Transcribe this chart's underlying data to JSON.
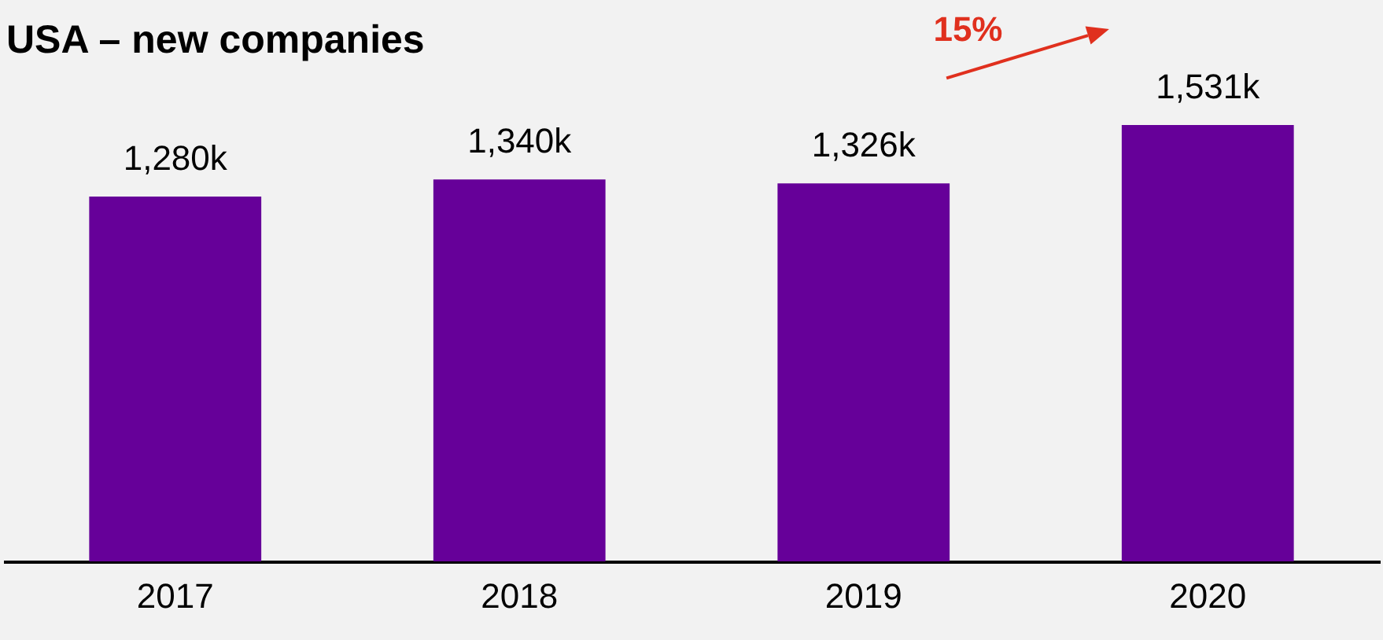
{
  "chart_data": {
    "type": "bar",
    "title": "USA – new companies",
    "categories": [
      "2017",
      "2018",
      "2019",
      "2020"
    ],
    "values": [
      1280,
      1340,
      1326,
      1531
    ],
    "value_labels": [
      "1,280k",
      "1,340k",
      "1,326k",
      "1,531k"
    ],
    "color": "#660099",
    "tick_labels": "x",
    "annotations": [
      "15%"
    ]
  }
}
